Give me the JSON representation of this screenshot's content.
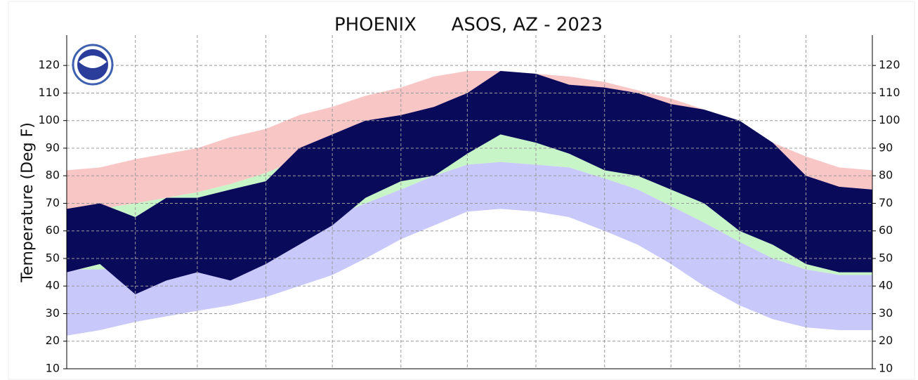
{
  "chart_data": {
    "type": "climate-band",
    "title": "PHOENIX      ASOS, AZ - 2023",
    "y_label": "Temperature (Deg F)",
    "x": [
      1,
      16,
      32,
      46,
      60,
      75,
      91,
      106,
      121,
      136,
      152,
      167,
      182,
      197,
      213,
      228,
      244,
      259,
      274,
      289,
      305,
      320,
      335,
      350,
      365
    ],
    "xlim": [
      1,
      365
    ],
    "xticks": [
      32,
      60,
      91,
      121,
      152,
      182,
      213,
      244,
      274,
      305,
      335
    ],
    "ylim": [
      10,
      131
    ],
    "yticks": [
      10,
      20,
      30,
      40,
      50,
      60,
      70,
      80,
      90,
      100,
      110,
      120
    ],
    "grid": true,
    "band_colors": [
      "#f9c6c6",
      "#c8f5c8",
      "#c8c8fa"
    ],
    "series": [
      {
        "values": [
          82,
          83,
          86,
          88,
          90,
          94,
          97,
          102,
          105,
          109,
          112,
          116,
          118,
          118,
          117,
          116,
          114,
          111,
          108,
          104,
          98,
          92,
          87,
          83,
          82
        ]
      },
      {
        "values": [
          67,
          68,
          70,
          72,
          74,
          77,
          81,
          86,
          90,
          95,
          100,
          104,
          106,
          107,
          106,
          105,
          102,
          99,
          94,
          88,
          81,
          74,
          69,
          66,
          66
        ]
      },
      {
        "values": [
          46,
          46,
          47,
          49,
          51,
          54,
          57,
          61,
          65,
          70,
          75,
          80,
          84,
          85,
          84,
          83,
          79,
          75,
          69,
          63,
          56,
          50,
          46,
          44,
          44
        ]
      },
      {
        "values": [
          22,
          24,
          27,
          29,
          31,
          33,
          36,
          40,
          44,
          50,
          57,
          62,
          67,
          68,
          67,
          65,
          60,
          55,
          48,
          40,
          33,
          28,
          25,
          24,
          24
        ]
      }
    ],
    "observed": {
      "color": "#0a0a5a",
      "high": [
        68,
        70,
        65,
        72,
        72,
        75,
        78,
        90,
        95,
        100,
        102,
        105,
        110,
        118,
        117,
        113,
        112,
        110,
        106,
        104,
        100,
        92,
        80,
        76,
        75
      ],
      "low": [
        45,
        48,
        37,
        42,
        45,
        42,
        48,
        55,
        62,
        72,
        78,
        80,
        88,
        95,
        92,
        88,
        82,
        80,
        75,
        70,
        60,
        55,
        48,
        45,
        45
      ]
    }
  }
}
